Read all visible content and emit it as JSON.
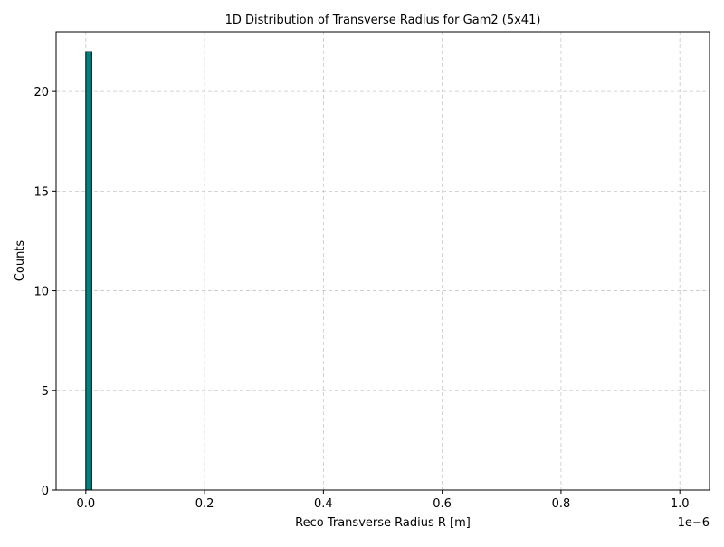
{
  "chart_data": {
    "type": "bar",
    "title": "1D Distribution of Transverse Radius for Gam2 (5x41)",
    "xlabel": "Reco Transverse Radius R [m]",
    "ylabel": "Counts",
    "x_offset_text": "1e−6",
    "xlim": [
      -0.05,
      1.05
    ],
    "ylim": [
      0,
      23
    ],
    "xticks": [
      {
        "value": 0.0,
        "label": "0.0"
      },
      {
        "value": 0.2,
        "label": "0.2"
      },
      {
        "value": 0.4,
        "label": "0.4"
      },
      {
        "value": 0.6,
        "label": "0.6"
      },
      {
        "value": 0.8,
        "label": "0.8"
      },
      {
        "value": 1.0,
        "label": "1.0"
      }
    ],
    "yticks": [
      {
        "value": 0,
        "label": "0"
      },
      {
        "value": 5,
        "label": "5"
      },
      {
        "value": 10,
        "label": "10"
      },
      {
        "value": 15,
        "label": "15"
      },
      {
        "value": 20,
        "label": "20"
      }
    ],
    "grid": true,
    "bar_color": "#008080",
    "bins": [
      {
        "x0": 0.0,
        "x1": 0.01,
        "count": 22
      }
    ]
  }
}
